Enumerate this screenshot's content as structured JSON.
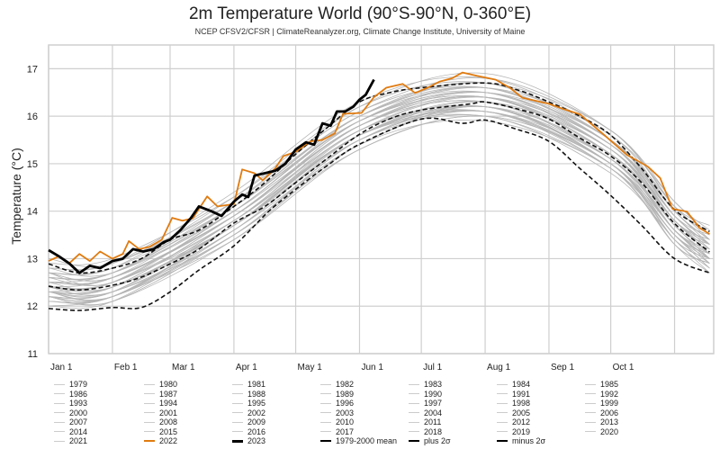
{
  "chart_data": {
    "type": "line",
    "title": "2m Temperature World (90°S-90°N, 0-360°E)",
    "subtitle": "NCEP CFSV2/CFSR | ClimateReanalyzer.org, Climate Change Institute, University of Maine",
    "ylabel": "Temperature (°C)",
    "xlabel": "",
    "x_unit": "day of year (0 = Jan 1)",
    "xlim": [
      0,
      323
    ],
    "ylim": [
      11,
      17.5
    ],
    "yticks": [
      11,
      12,
      13,
      14,
      15,
      16,
      17
    ],
    "xticks": [
      {
        "day": 0,
        "label": "Jan 1"
      },
      {
        "day": 31,
        "label": "Feb 1"
      },
      {
        "day": 59,
        "label": "Mar 1"
      },
      {
        "day": 90,
        "label": "Apr 1"
      },
      {
        "day": 120,
        "label": "May 1"
      },
      {
        "day": 151,
        "label": "Jun 1"
      },
      {
        "day": 181,
        "label": "Jul 1"
      },
      {
        "day": 212,
        "label": "Aug 1"
      },
      {
        "day": 243,
        "label": "Sep 1"
      },
      {
        "day": 273,
        "label": "Oct 1"
      },
      {
        "day": 304,
        "label": ""
      }
    ],
    "grid": true,
    "legend_position": "bottom",
    "colors": {
      "past_years": "#b5b5b5",
      "y2022": "#e07b10",
      "y2023": "#000000",
      "climatology": "#000000",
      "grid": "#cccccc"
    },
    "past_days": [
      0,
      31,
      90,
      151,
      212,
      273,
      304,
      321
    ],
    "past_years": [
      {
        "name": "1979",
        "values": [
          12.1,
          12.2,
          13.5,
          15.3,
          16.0,
          15.0,
          13.4,
          12.8
        ]
      },
      {
        "name": "1980",
        "values": [
          12.3,
          12.2,
          13.5,
          15.5,
          16.2,
          15.0,
          13.4,
          13.0
        ]
      },
      {
        "name": "1981",
        "values": [
          12.1,
          12.2,
          13.7,
          15.6,
          16.1,
          14.9,
          13.5,
          12.8
        ]
      },
      {
        "name": "1982",
        "values": [
          12.2,
          12.1,
          13.5,
          15.4,
          15.9,
          14.9,
          13.3,
          12.7
        ]
      },
      {
        "name": "1983",
        "values": [
          12.4,
          12.3,
          13.6,
          15.6,
          16.3,
          15.1,
          13.5,
          13.1
        ]
      },
      {
        "name": "1984",
        "values": [
          12.0,
          12.1,
          13.6,
          15.5,
          16.0,
          14.8,
          13.4,
          12.7
        ]
      },
      {
        "name": "1985",
        "values": [
          12.0,
          12.2,
          13.4,
          15.3,
          16.0,
          15.0,
          13.3,
          12.9
        ]
      },
      {
        "name": "1986",
        "values": [
          12.3,
          12.3,
          13.5,
          15.5,
          16.1,
          15.0,
          13.5,
          13.0
        ]
      },
      {
        "name": "1987",
        "values": [
          12.2,
          12.3,
          13.8,
          15.7,
          16.2,
          15.0,
          13.6,
          12.9
        ]
      },
      {
        "name": "1988",
        "values": [
          12.3,
          12.4,
          13.7,
          15.5,
          16.2,
          15.2,
          13.6,
          13.0
        ]
      },
      {
        "name": "1989",
        "values": [
          12.2,
          12.2,
          13.6,
          15.4,
          16.2,
          15.0,
          13.4,
          13.0
        ]
      },
      {
        "name": "1990",
        "values": [
          12.3,
          12.4,
          13.9,
          15.8,
          16.3,
          15.1,
          13.7,
          13.0
        ]
      },
      {
        "name": "1991",
        "values": [
          12.4,
          12.4,
          13.7,
          15.6,
          16.1,
          15.1,
          13.6,
          13.0
        ]
      },
      {
        "name": "1992",
        "values": [
          12.2,
          12.1,
          13.4,
          15.4,
          16.1,
          14.9,
          13.3,
          12.9
        ]
      },
      {
        "name": "1993",
        "values": [
          12.2,
          12.2,
          13.7,
          15.6,
          16.0,
          14.9,
          13.5,
          12.8
        ]
      },
      {
        "name": "1994",
        "values": [
          12.3,
          12.5,
          13.7,
          15.6,
          16.2,
          15.1,
          13.6,
          13.1
        ]
      },
      {
        "name": "1995",
        "values": [
          12.5,
          12.4,
          13.7,
          15.7,
          16.4,
          15.2,
          13.6,
          13.2
        ]
      },
      {
        "name": "1996",
        "values": [
          12.3,
          12.3,
          13.8,
          15.6,
          16.2,
          15.0,
          13.5,
          12.9
        ]
      },
      {
        "name": "1997",
        "values": [
          12.4,
          12.5,
          13.8,
          15.6,
          16.3,
          15.3,
          13.7,
          13.1
        ]
      },
      {
        "name": "1998",
        "values": [
          12.7,
          12.6,
          13.9,
          15.9,
          16.6,
          15.4,
          13.8,
          13.4
        ]
      },
      {
        "name": "1999",
        "values": [
          12.3,
          12.2,
          13.7,
          15.7,
          16.1,
          15.0,
          13.6,
          13.0
        ]
      },
      {
        "name": "2000",
        "values": [
          12.2,
          12.3,
          13.7,
          15.6,
          16.2,
          15.1,
          13.6,
          13.0
        ]
      },
      {
        "name": "2001",
        "values": [
          12.6,
          12.5,
          13.8,
          15.8,
          16.5,
          15.3,
          13.7,
          13.3
        ]
      },
      {
        "name": "2002",
        "values": [
          12.4,
          12.5,
          14.0,
          15.9,
          16.4,
          15.2,
          13.8,
          13.1
        ]
      },
      {
        "name": "2003",
        "values": [
          12.5,
          12.6,
          13.9,
          15.7,
          16.4,
          15.4,
          13.8,
          13.2
        ]
      },
      {
        "name": "2004",
        "values": [
          12.5,
          12.6,
          13.9,
          15.8,
          16.4,
          15.3,
          13.8,
          13.2
        ]
      },
      {
        "name": "2005",
        "values": [
          12.5,
          12.6,
          14.1,
          16.0,
          16.5,
          15.3,
          13.9,
          13.2
        ]
      },
      {
        "name": "2006",
        "values": [
          12.4,
          12.6,
          13.9,
          15.8,
          16.4,
          15.3,
          13.8,
          13.3
        ]
      },
      {
        "name": "2007",
        "values": [
          12.7,
          12.5,
          14.0,
          15.9,
          16.5,
          15.4,
          13.9,
          13.3
        ]
      },
      {
        "name": "2008",
        "values": [
          12.3,
          12.4,
          13.9,
          15.8,
          16.3,
          15.1,
          13.7,
          13.0
        ]
      },
      {
        "name": "2009",
        "values": [
          12.6,
          12.7,
          14.0,
          15.8,
          16.5,
          15.5,
          13.9,
          13.3
        ]
      },
      {
        "name": "2010",
        "values": [
          12.8,
          12.7,
          14.0,
          16.0,
          16.7,
          15.5,
          13.9,
          13.5
        ]
      },
      {
        "name": "2011",
        "values": [
          12.4,
          12.5,
          14.0,
          15.9,
          16.4,
          15.2,
          13.8,
          13.1
        ]
      },
      {
        "name": "2012",
        "values": [
          12.5,
          12.7,
          14.1,
          15.9,
          16.5,
          15.4,
          13.9,
          13.3
        ]
      },
      {
        "name": "2013",
        "values": [
          12.7,
          12.6,
          13.9,
          15.9,
          16.6,
          15.4,
          13.8,
          13.4
        ]
      },
      {
        "name": "2014",
        "values": [
          12.6,
          12.7,
          14.2,
          16.1,
          16.6,
          15.4,
          14.0,
          13.3
        ]
      },
      {
        "name": "2015",
        "values": [
          12.8,
          12.9,
          14.2,
          16.0,
          16.7,
          15.7,
          14.1,
          13.5
        ]
      },
      {
        "name": "2016",
        "values": [
          13.0,
          12.9,
          14.2,
          16.2,
          16.9,
          15.7,
          14.1,
          13.7
        ]
      },
      {
        "name": "2017",
        "values": [
          12.7,
          12.8,
          14.3,
          16.2,
          16.7,
          15.5,
          14.1,
          13.4
        ]
      },
      {
        "name": "2018",
        "values": [
          12.7,
          12.8,
          14.1,
          15.9,
          16.6,
          15.6,
          14.0,
          13.4
        ]
      },
      {
        "name": "2019",
        "values": [
          12.9,
          13.0,
          14.3,
          16.1,
          16.8,
          15.7,
          14.2,
          13.6
        ]
      },
      {
        "name": "2020",
        "values": [
          12.8,
          12.9,
          14.4,
          16.3,
          16.8,
          15.6,
          14.2,
          13.5
        ]
      },
      {
        "name": "2021",
        "values": [
          12.6,
          12.7,
          14.1,
          16.0,
          16.6,
          15.5,
          14.0,
          13.4
        ]
      }
    ],
    "series": [
      {
        "name": "2022",
        "x": [
          0,
          5,
          10,
          15,
          20,
          25,
          31,
          36,
          39,
          44,
          49,
          55,
          60,
          65,
          70,
          77,
          82,
          90,
          94,
          100,
          104,
          110,
          114,
          120,
          127,
          133,
          139,
          143,
          152,
          158,
          164,
          172,
          178,
          184,
          190,
          196,
          201,
          208,
          217,
          224,
          230,
          243,
          250,
          258,
          270,
          281,
          291,
          297,
          303,
          310,
          316,
          321
        ],
        "values": [
          12.95,
          13.05,
          12.9,
          13.1,
          12.95,
          13.15,
          13.0,
          13.1,
          13.37,
          13.2,
          13.25,
          13.4,
          13.86,
          13.8,
          13.85,
          14.31,
          14.1,
          14.15,
          14.88,
          14.8,
          14.65,
          14.9,
          15.16,
          15.25,
          15.47,
          15.5,
          15.64,
          16.05,
          16.07,
          16.4,
          16.6,
          16.68,
          16.49,
          16.6,
          16.73,
          16.8,
          16.92,
          16.85,
          16.77,
          16.6,
          16.39,
          16.26,
          16.15,
          16.04,
          15.6,
          15.18,
          14.94,
          14.7,
          14.05,
          13.99,
          13.65,
          13.52
        ]
      },
      {
        "name": "2023",
        "x": [
          0,
          5,
          10,
          15,
          20,
          25,
          31,
          36,
          41,
          46,
          51,
          56,
          59,
          64,
          69,
          73,
          79,
          84,
          90,
          94,
          97,
          100,
          105,
          110,
          115,
          120,
          125,
          129,
          133,
          137,
          140,
          144,
          148,
          151,
          154,
          158
        ],
        "values": [
          13.18,
          13.05,
          12.9,
          12.7,
          12.85,
          12.8,
          12.95,
          13.0,
          13.2,
          13.15,
          13.2,
          13.35,
          13.4,
          13.6,
          13.85,
          14.1,
          14.0,
          13.9,
          14.2,
          14.35,
          14.3,
          14.75,
          14.8,
          14.85,
          15.0,
          15.3,
          15.45,
          15.4,
          15.85,
          15.8,
          16.1,
          16.1,
          16.2,
          16.35,
          16.45,
          16.77
        ]
      },
      {
        "name": "1979-2000 mean",
        "x": [
          0,
          15,
          31,
          45,
          59,
          73,
          90,
          105,
          120,
          135,
          151,
          166,
          181,
          205,
          212,
          228,
          243,
          258,
          273,
          288,
          304,
          321
        ],
        "values": [
          12.42,
          12.34,
          12.44,
          12.61,
          12.89,
          13.2,
          13.75,
          14.1,
          14.6,
          15.1,
          15.62,
          15.95,
          16.13,
          16.26,
          16.3,
          16.15,
          15.94,
          15.54,
          15.16,
          14.6,
          13.74,
          13.14
        ]
      },
      {
        "name": "plus 2σ",
        "x": [
          0,
          15,
          31,
          45,
          59,
          73,
          90,
          105,
          120,
          135,
          151,
          166,
          181,
          212,
          228,
          243,
          258,
          273,
          288,
          304,
          321
        ],
        "values": [
          12.89,
          12.7,
          12.8,
          13.0,
          13.4,
          13.6,
          14.1,
          14.6,
          15.2,
          15.75,
          16.3,
          16.5,
          16.6,
          16.7,
          16.55,
          16.3,
          16.0,
          15.6,
          14.9,
          14.03,
          13.57
        ]
      },
      {
        "name": "minus 2σ",
        "x": [
          0,
          15,
          31,
          45,
          59,
          73,
          90,
          107,
          120,
          135,
          151,
          181,
          201,
          212,
          227,
          243,
          258,
          273,
          288,
          304,
          321
        ],
        "values": [
          11.95,
          11.91,
          11.97,
          11.97,
          12.3,
          12.76,
          13.27,
          14.0,
          14.46,
          14.95,
          15.41,
          15.94,
          15.85,
          15.92,
          15.73,
          15.47,
          14.9,
          14.33,
          13.7,
          13.0,
          12.7
        ]
      }
    ]
  },
  "legend": {
    "rows": [
      [
        "1979",
        "1980",
        "1981",
        "1982",
        "1983",
        "1984",
        "1985"
      ],
      [
        "1986",
        "1987",
        "1988",
        "1989",
        "1990",
        "1991",
        "1992"
      ],
      [
        "1993",
        "1994",
        "1995",
        "1996",
        "1997",
        "1998",
        "1999"
      ],
      [
        "2000",
        "2001",
        "2002",
        "2003",
        "2004",
        "2005",
        "2006"
      ],
      [
        "2007",
        "2008",
        "2009",
        "2010",
        "2011",
        "2012",
        "2013"
      ],
      [
        "2014",
        "2015",
        "2016",
        "2017",
        "2018",
        "2019",
        "2020"
      ],
      [
        "2021",
        "2022",
        "2023",
        "1979-2000 mean",
        "plus 2σ",
        "minus 2σ"
      ]
    ]
  }
}
